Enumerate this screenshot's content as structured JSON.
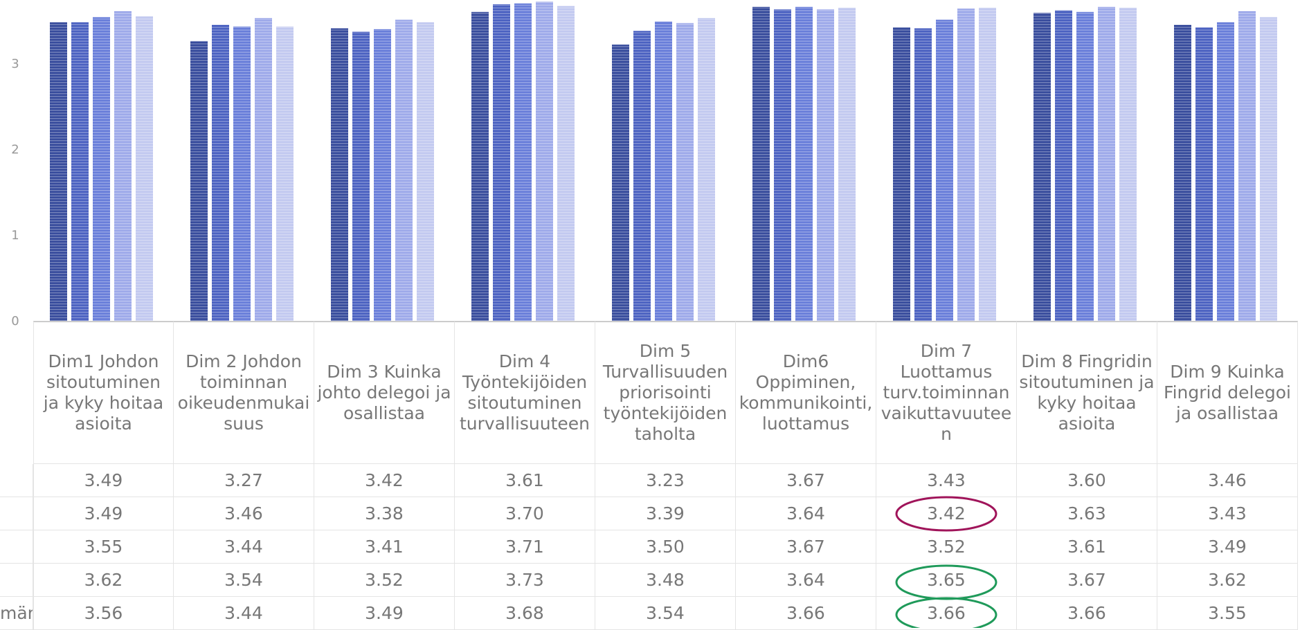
{
  "chart_data": {
    "type": "bar",
    "categories": [
      "Dim1 Johdon sitoutuminen ja kyky hoitaa asioita",
      "Dim 2 Johdon toiminnan oikeudenmukaisuus",
      "Dim 3 Kuinka johto delegoi ja osallistaa",
      "Dim 4 Työntekijöiden sitoutuminen turvallisuuteen",
      "Dim 5 Turvallisuuden priorisointi työntekijöiden taholta",
      "Dim6 Oppiminen, kommunikointi, luottamus",
      "Dim 7 Luottamus turv.toiminnan vaikuttavuuteen",
      "Dim 8 Fingridin sitoutuminen ja kyky hoitaa asioita",
      "Dim 9 Kuinka Fingrid delegoi ja osallistaa"
    ],
    "series": [
      {
        "color": "#3b4f9e",
        "values": [
          3.49,
          3.27,
          3.42,
          3.61,
          3.23,
          3.67,
          3.43,
          3.6,
          3.46
        ],
        "value_labels": [
          "3.49",
          "3.27",
          "3.42",
          "3.61",
          "3.23",
          "3.67",
          "3.43",
          "3.60",
          "3.46"
        ]
      },
      {
        "color": "#4e64c2",
        "values": [
          3.49,
          3.46,
          3.38,
          3.7,
          3.39,
          3.64,
          3.42,
          3.63,
          3.43
        ],
        "value_labels": [
          "3.49",
          "3.46",
          "3.38",
          "3.70",
          "3.39",
          "3.64",
          "3.42",
          "3.63",
          "3.43"
        ]
      },
      {
        "color": "#6b80da",
        "values": [
          3.55,
          3.44,
          3.41,
          3.71,
          3.5,
          3.67,
          3.52,
          3.61,
          3.49
        ],
        "value_labels": [
          "3.55",
          "3.44",
          "3.41",
          "3.71",
          "3.50",
          "3.67",
          "3.52",
          "3.61",
          "3.49"
        ]
      },
      {
        "color": "#9fabea",
        "values": [
          3.62,
          3.54,
          3.52,
          3.73,
          3.48,
          3.64,
          3.65,
          3.67,
          3.62
        ],
        "value_labels": [
          "3.62",
          "3.54",
          "3.52",
          "3.73",
          "3.48",
          "3.64",
          "3.65",
          "3.67",
          "3.62"
        ]
      },
      {
        "name": "män",
        "color": "#c3caf0",
        "values": [
          3.56,
          3.44,
          3.49,
          3.68,
          3.54,
          3.66,
          3.66,
          3.66,
          3.55
        ],
        "value_labels": [
          "3.56",
          "3.44",
          "3.49",
          "3.68",
          "3.54",
          "3.66",
          "3.66",
          "3.66",
          "3.55"
        ]
      }
    ],
    "ylim": [
      0,
      3.75
    ],
    "yticks": [
      0,
      1,
      2,
      3
    ],
    "grid": false
  }
}
